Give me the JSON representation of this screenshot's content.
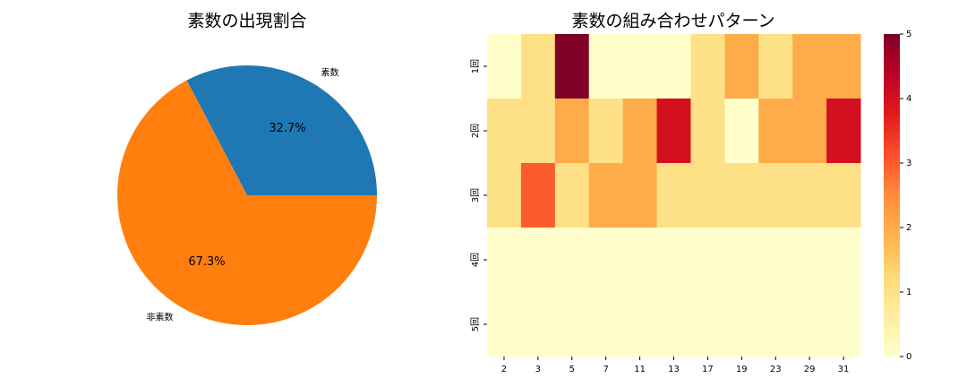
{
  "chart_data": [
    {
      "type": "pie",
      "title": "素数の出現割合",
      "categories": [
        "素数",
        "非素数"
      ],
      "values": [
        32.7,
        67.3
      ],
      "value_labels": [
        "32.7%",
        "67.3%"
      ],
      "colors": [
        "#1f77b4",
        "#ff7f0e"
      ]
    },
    {
      "type": "heatmap",
      "title": "素数の組み合わせパターン",
      "x": [
        "2",
        "3",
        "5",
        "7",
        "11",
        "13",
        "17",
        "19",
        "23",
        "29",
        "31"
      ],
      "y": [
        "1回",
        "2回",
        "3回",
        "4回",
        "5回"
      ],
      "z": [
        [
          0,
          1,
          5,
          0,
          0,
          0,
          1,
          2,
          1,
          2,
          2
        ],
        [
          1,
          1,
          2,
          1,
          2,
          4,
          1,
          0,
          2,
          2,
          4
        ],
        [
          1,
          3,
          1,
          2,
          2,
          1,
          1,
          1,
          1,
          1,
          1
        ],
        [
          0,
          0,
          0,
          0,
          0,
          0,
          0,
          0,
          0,
          0,
          0
        ],
        [
          0,
          0,
          0,
          0,
          0,
          0,
          0,
          0,
          0,
          0,
          0
        ]
      ],
      "zlim": [
        0,
        5
      ],
      "zticks": [
        0,
        1,
        2,
        3,
        4,
        5
      ],
      "colormap": "YlOrRd"
    }
  ]
}
